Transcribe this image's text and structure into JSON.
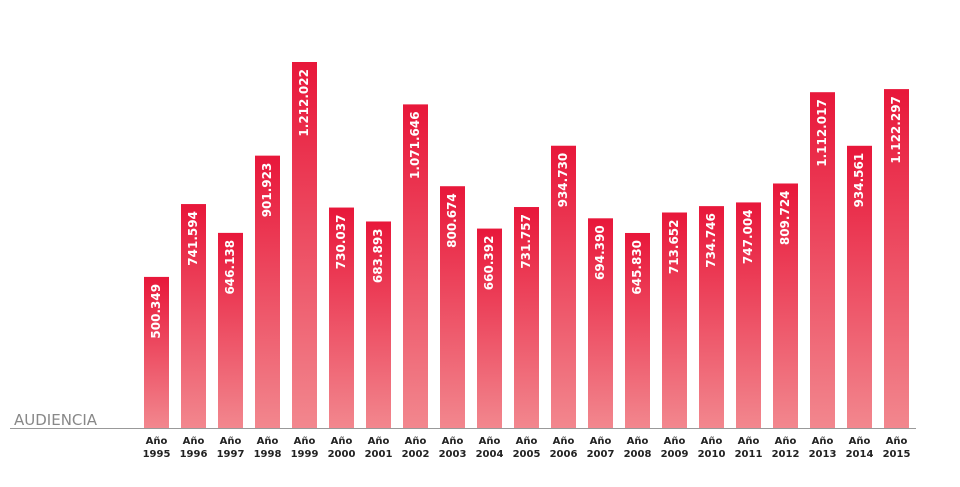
{
  "chart_data": {
    "type": "bar",
    "axis_label": "AUDIENCIA",
    "categories": [
      "Año 1995",
      "Año 1996",
      "Año 1997",
      "Año 1998",
      "Año 1999",
      "Año 2000",
      "Año 2001",
      "Año 2002",
      "Año 2003",
      "Año 2004",
      "Año 2005",
      "Año 2006",
      "Año 2007",
      "Año 2008",
      "Año 2009",
      "Año 2010",
      "Año 2011",
      "Año 2012",
      "Año 2013",
      "Año 2014",
      "Año 2015"
    ],
    "values": [
      500349,
      741594,
      646138,
      901923,
      1212022,
      730037,
      683893,
      1071646,
      800674,
      660392,
      731757,
      934730,
      694390,
      645830,
      713652,
      734746,
      747004,
      809724,
      1112017,
      934561,
      1122297
    ],
    "value_labels": [
      "500.349",
      "741.594",
      "646.138",
      "901.923",
      "1.212.022",
      "730.037",
      "683.893",
      "1.071.646",
      "800.674",
      "660.392",
      "731.757",
      "934.730",
      "694.390",
      "645.830",
      "713.652",
      "734.746",
      "747.004",
      "809.724",
      "1.112.017",
      "934.561",
      "1.122.297"
    ],
    "color": "#e8173a"
  }
}
